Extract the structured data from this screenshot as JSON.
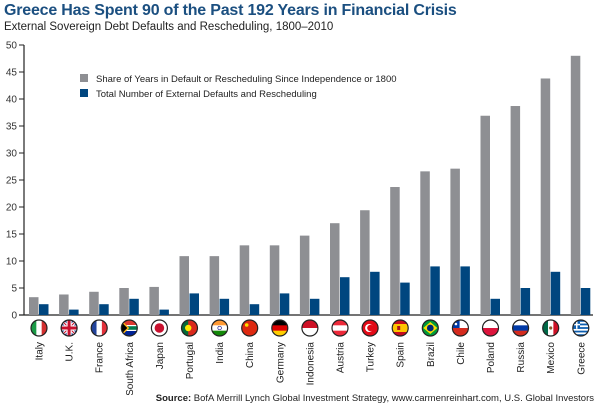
{
  "title": "Greece Has Spent 90 of the Past 192 Years in Financial Crisis",
  "subtitle": "External Sovereign Debt Defaults and Rescheduling, 1800–2010",
  "source_label": "Source:",
  "source_text": " BofA Merrill Lynch Global Investment Strategy, www.carmenreinhart.com, U.S. Global Investors",
  "colors": {
    "share": "#8e8f93",
    "total": "#00467f",
    "axis": "#222222"
  },
  "chart_data": {
    "type": "bar",
    "title": "Greece Has Spent 90 of the Past 192 Years in Financial Crisis",
    "subtitle": "External Sovereign Debt Defaults and Rescheduling, 1800–2010",
    "xlabel": "",
    "ylabel": "",
    "ylim": [
      0,
      50
    ],
    "yticks": [
      0,
      5,
      10,
      15,
      20,
      25,
      30,
      35,
      40,
      45,
      50
    ],
    "grid": false,
    "legend_position": "top-left",
    "categories": [
      "Italy",
      "U.K.",
      "France",
      "South Africa",
      "Japan",
      "Portugal",
      "India",
      "China",
      "Germany",
      "Indonesia",
      "Austria",
      "Turkey",
      "Spain",
      "Brazil",
      "Chile",
      "Poland",
      "Russia",
      "Mexico",
      "Greece"
    ],
    "flags": [
      "italy-flag",
      "uk-flag",
      "france-flag",
      "south-africa-flag",
      "japan-flag",
      "portugal-flag",
      "india-flag",
      "china-flag",
      "germany-flag",
      "indonesia-flag",
      "austria-flag",
      "turkey-flag",
      "spain-flag",
      "brazil-flag",
      "chile-flag",
      "poland-flag",
      "russia-flag",
      "mexico-flag",
      "greece-flag"
    ],
    "series": [
      {
        "name": "Share of Years in Default or Rescheduling Since Independence or 1800",
        "color": "#8e8f93",
        "values": [
          3.3,
          3.8,
          4.3,
          5.0,
          5.2,
          10.9,
          10.9,
          12.9,
          12.9,
          14.7,
          17.0,
          19.4,
          23.7,
          26.6,
          27.1,
          36.9,
          38.7,
          43.8,
          48.0
        ]
      },
      {
        "name": "Total Number of External Defaults and Rescheduling",
        "color": "#00467f",
        "values": [
          2,
          1,
          2,
          3,
          1,
          4,
          3,
          2,
          4,
          3,
          7,
          8,
          6,
          9,
          9,
          3,
          5,
          8,
          5
        ]
      }
    ]
  }
}
